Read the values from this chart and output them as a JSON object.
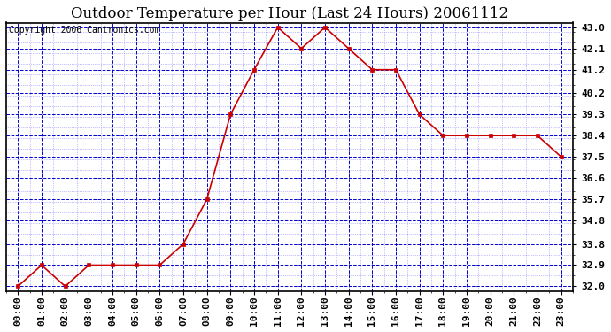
{
  "title": "Outdoor Temperature per Hour (Last 24 Hours) 20061112",
  "copyright": "Copyright 2006 Cantronics.com",
  "hours": [
    "00:00",
    "01:00",
    "02:00",
    "03:00",
    "04:00",
    "05:00",
    "06:00",
    "07:00",
    "08:00",
    "09:00",
    "10:00",
    "11:00",
    "12:00",
    "13:00",
    "14:00",
    "15:00",
    "16:00",
    "17:00",
    "18:00",
    "19:00",
    "20:00",
    "21:00",
    "22:00",
    "23:00"
  ],
  "values": [
    32.0,
    32.9,
    32.0,
    32.9,
    32.9,
    32.9,
    32.9,
    33.8,
    35.7,
    39.3,
    41.2,
    43.0,
    42.1,
    43.0,
    42.1,
    41.2,
    41.2,
    39.3,
    38.4,
    38.4,
    38.4,
    38.4,
    38.4,
    37.5
  ],
  "ylim_min": 32.0,
  "ylim_max": 43.0,
  "yticks": [
    32.0,
    32.9,
    33.8,
    34.8,
    35.7,
    36.6,
    37.5,
    38.4,
    39.3,
    40.2,
    41.2,
    42.1,
    43.0
  ],
  "line_color": "#cc0000",
  "marker_color": "#cc0000",
  "fig_bg_color": "#ffffff",
  "plot_bg_color": "#ffffff",
  "grid_major_color": "#0000cc",
  "grid_minor_color": "#6666ff",
  "border_color": "#000000",
  "title_fontsize": 12,
  "tick_fontsize": 8,
  "copyright_fontsize": 7
}
